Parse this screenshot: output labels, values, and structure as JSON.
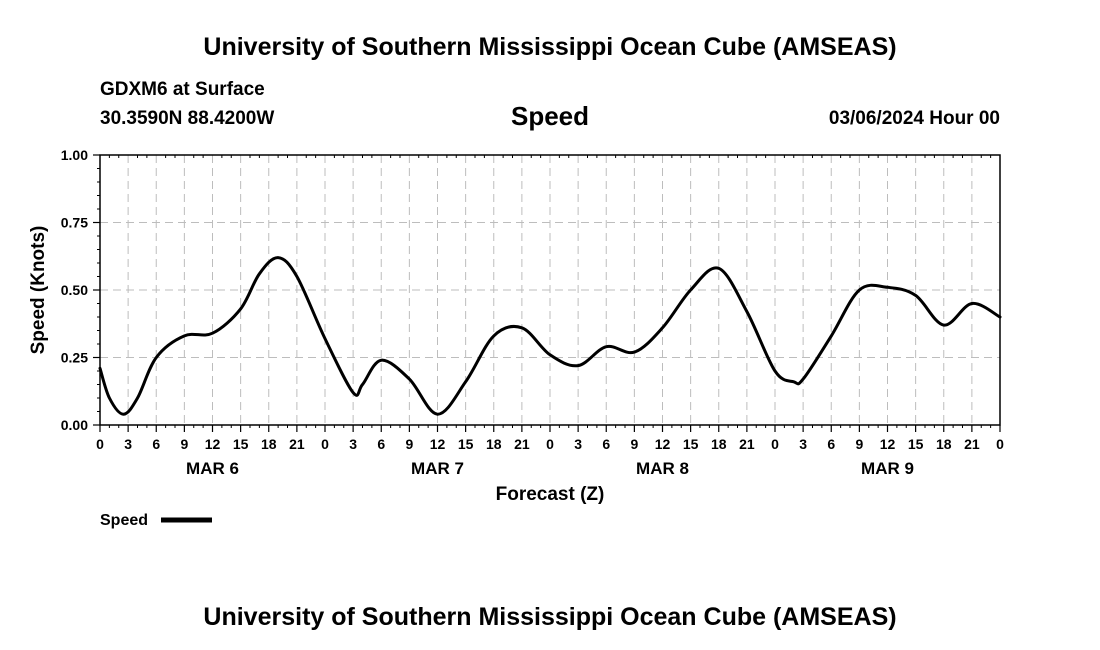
{
  "header": {
    "title": "University of Southern Mississippi Ocean Cube (AMSEAS)",
    "station": "GDXM6 at Surface",
    "coordinates": "30.3590N  88.4200W",
    "variable": "Speed",
    "date": "03/06/2024 Hour 00"
  },
  "footer": {
    "title": "University of Southern Mississippi Ocean Cube (AMSEAS)"
  },
  "legend": {
    "label": "Speed"
  },
  "chart_data": {
    "type": "line",
    "title": "Speed",
    "xlabel": "Forecast (Z)",
    "ylabel": "Speed (Knots)",
    "xlim": [
      0,
      96
    ],
    "ylim": [
      0,
      1
    ],
    "y_ticks": [
      0,
      0.25,
      0.5,
      0.75,
      1.0
    ],
    "y_tick_labels": [
      "0.00",
      "0.25",
      "0.50",
      "0.75",
      "1.00"
    ],
    "x_tick_labels": [
      "0",
      "3",
      "6",
      "9",
      "12",
      "15",
      "18",
      "21",
      "0",
      "3",
      "6",
      "9",
      "12",
      "15",
      "18",
      "21",
      "0",
      "3",
      "6",
      "9",
      "12",
      "15",
      "18",
      "21",
      "0",
      "3",
      "6",
      "9",
      "12",
      "15",
      "18",
      "21",
      "0"
    ],
    "day_labels": [
      {
        "label": "MAR 6",
        "hour": 12
      },
      {
        "label": "MAR 7",
        "hour": 36
      },
      {
        "label": "MAR 8",
        "hour": 60
      },
      {
        "label": "MAR 9",
        "hour": 84
      }
    ],
    "grid": true,
    "legend_position": "bottom-left",
    "line_color": "#000000",
    "series": [
      {
        "name": "Speed",
        "x": [
          0,
          1,
          2.5,
          4,
          6,
          9,
          12,
          15,
          17,
          19,
          21,
          24,
          27,
          28,
          30,
          33,
          36,
          39,
          42,
          45,
          48,
          51,
          54,
          57,
          60,
          63,
          66,
          69,
          72,
          74,
          75,
          78,
          81,
          84,
          87,
          90,
          93,
          96
        ],
        "values": [
          0.21,
          0.1,
          0.04,
          0.1,
          0.25,
          0.33,
          0.34,
          0.43,
          0.56,
          0.62,
          0.55,
          0.32,
          0.12,
          0.15,
          0.24,
          0.17,
          0.04,
          0.16,
          0.33,
          0.36,
          0.26,
          0.22,
          0.29,
          0.27,
          0.36,
          0.5,
          0.58,
          0.42,
          0.2,
          0.16,
          0.17,
          0.33,
          0.5,
          0.51,
          0.48,
          0.37,
          0.45,
          0.4
        ]
      }
    ]
  }
}
